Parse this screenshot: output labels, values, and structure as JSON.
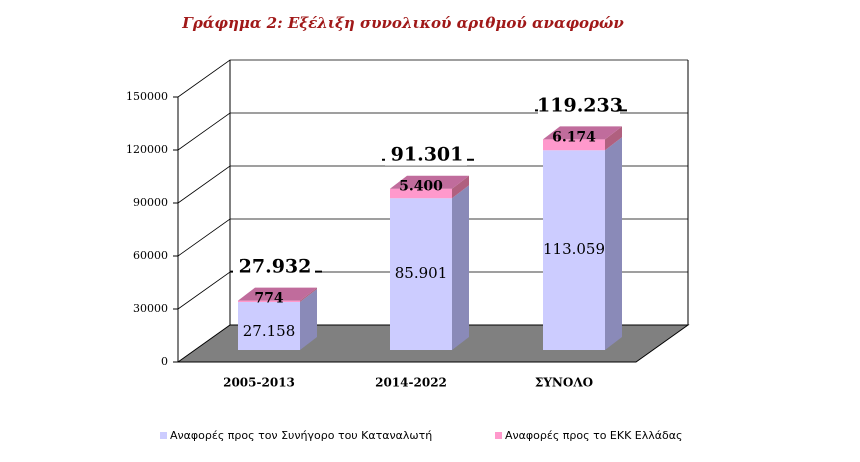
{
  "chart_data": {
    "type": "bar3d_stacked",
    "title": "Γράφημα 2:  Εξέλιξη συνολικού αριθμού αναφορών",
    "categories": [
      "2005-2013",
      "2014-2022",
      "ΣΥΝΟΛΟ"
    ],
    "series": [
      {
        "name": "Αναφορές προς τον Συνήγορο του Καταναλωτή",
        "color": "#ccccff",
        "values": [
          27158,
          85901,
          113059
        ],
        "value_labels": [
          "27.158",
          "85.901",
          "113.059"
        ]
      },
      {
        "name": "Αναφορές προς το ΕΚΚ Ελλάδας",
        "color": "#ff99cc",
        "values": [
          774,
          5400,
          6174
        ],
        "value_labels": [
          "774",
          "5.400",
          "6.174"
        ]
      }
    ],
    "totals": {
      "values": [
        27932,
        91301,
        119233
      ],
      "value_labels": [
        "27.932",
        "91.301",
        "119.233"
      ]
    },
    "ylim": [
      0,
      150000
    ],
    "yticks": [
      0,
      30000,
      60000,
      90000,
      120000,
      150000
    ],
    "grid": true,
    "legend": "bottom"
  }
}
